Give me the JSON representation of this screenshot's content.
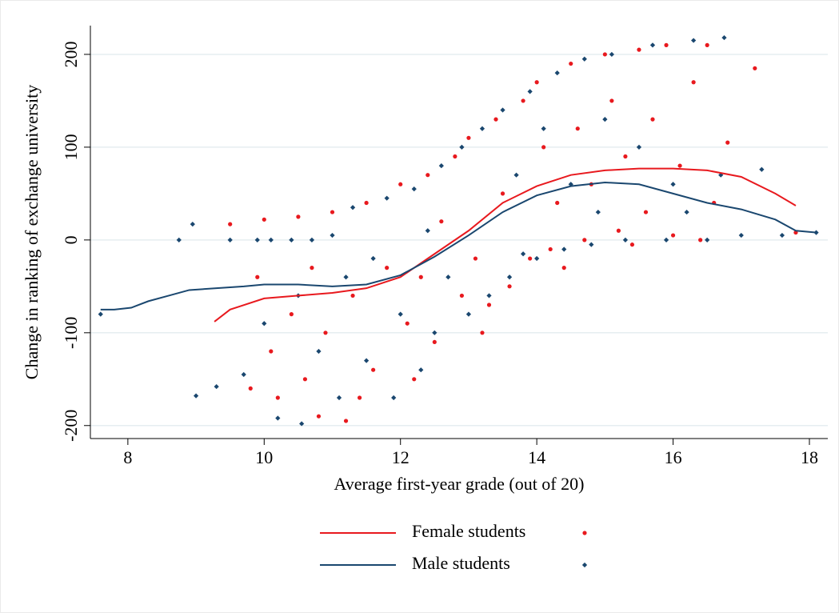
{
  "chart_data": {
    "type": "scatter",
    "xlabel": "Average first-year grade (out of 20)",
    "ylabel": "Change in ranking of exchange university",
    "xlim": [
      7.45,
      18.27
    ],
    "ylim": [
      -214,
      231
    ],
    "xticks": [
      8,
      10,
      12,
      14,
      16,
      18
    ],
    "yticks": [
      -200,
      -100,
      0,
      100,
      200
    ],
    "grid": true,
    "legend": "bottom",
    "series": [
      {
        "name": "Female students",
        "color": "#e8191e",
        "marker": "circle",
        "line": {
          "x": [
            9.27,
            9.5,
            10,
            10.5,
            11,
            11.5,
            12,
            12.5,
            13,
            13.5,
            14,
            14.5,
            15,
            15.5,
            16,
            16.5,
            17,
            17.5,
            17.8
          ],
          "values": [
            -88,
            -75,
            -63,
            -60,
            -57,
            -52,
            -40,
            -15,
            10,
            40,
            58,
            70,
            75,
            77,
            77,
            75,
            68,
            50,
            37
          ]
        },
        "points": {
          "x": [
            9.5,
            9.8,
            10,
            10.1,
            10.2,
            10.4,
            10.5,
            10.6,
            10.8,
            10.9,
            11,
            11.2,
            11.3,
            11.5,
            11.6,
            11.8,
            12,
            12.1,
            12.2,
            12.4,
            12.5,
            12.6,
            12.8,
            12.9,
            13,
            13.1,
            13.2,
            13.4,
            13.5,
            13.6,
            13.8,
            13.9,
            14,
            14.1,
            14.2,
            14.3,
            14.5,
            14.6,
            14.7,
            14.8,
            15,
            15.1,
            15.2,
            15.3,
            15.5,
            15.6,
            15.7,
            15.9,
            16,
            16.1,
            16.3,
            16.4,
            16.5,
            16.6,
            16.8,
            17.2,
            17.8,
            9.9,
            10.7,
            11.4,
            12.3,
            13.3,
            14.4,
            15.4
          ],
          "values": [
            17,
            -160,
            22,
            -120,
            -170,
            -80,
            25,
            -150,
            -190,
            -100,
            30,
            -195,
            -60,
            40,
            -140,
            -30,
            60,
            -90,
            -150,
            70,
            -110,
            20,
            90,
            -60,
            110,
            -20,
            -100,
            130,
            50,
            -50,
            150,
            -20,
            170,
            100,
            -10,
            40,
            190,
            120,
            0,
            60,
            200,
            150,
            10,
            90,
            205,
            30,
            130,
            210,
            5,
            80,
            170,
            0,
            210,
            40,
            105,
            185,
            8,
            -40,
            -30,
            -170,
            -40,
            -70,
            -30,
            -5
          ]
        }
      },
      {
        "name": "Male students",
        "color": "#1a476f",
        "marker": "x",
        "line": {
          "x": [
            7.6,
            7.8,
            8.05,
            8.3,
            8.6,
            8.9,
            9.3,
            9.7,
            10,
            10.5,
            11,
            11.5,
            12,
            12.5,
            13,
            13.5,
            14,
            14.5,
            15,
            15.5,
            16,
            16.5,
            17,
            17.5,
            17.8,
            18.1
          ],
          "values": [
            -75,
            -75,
            -73,
            -66,
            -60,
            -54,
            -52,
            -50,
            -48,
            -48,
            -50,
            -48,
            -38,
            -18,
            5,
            30,
            48,
            58,
            62,
            60,
            50,
            40,
            33,
            22,
            10,
            8
          ]
        },
        "points": {
          "x": [
            7.6,
            8.75,
            8.95,
            9.0,
            9.3,
            9.5,
            9.7,
            9.9,
            10.0,
            10.1,
            10.2,
            10.4,
            10.5,
            10.55,
            10.7,
            10.8,
            11,
            11.1,
            11.3,
            11.5,
            11.6,
            11.8,
            11.9,
            12.0,
            12.2,
            12.3,
            12.5,
            12.6,
            12.7,
            12.9,
            13,
            13.2,
            13.3,
            13.5,
            13.6,
            13.7,
            13.9,
            14,
            14.1,
            14.3,
            14.4,
            14.5,
            14.7,
            14.8,
            15,
            15.1,
            15.3,
            15.5,
            15.7,
            15.9,
            16.0,
            16.3,
            16.5,
            16.7,
            16.75,
            17.0,
            17.3,
            17.6,
            18.1,
            11.2,
            12.4,
            13.8,
            14.9,
            16.2
          ],
          "values": [
            -80,
            0,
            17,
            -168,
            -158,
            0,
            -145,
            0,
            -90,
            0,
            -192,
            0,
            -60,
            -198,
            0,
            -120,
            5,
            -170,
            35,
            -130,
            -20,
            45,
            -170,
            -80,
            55,
            -140,
            -100,
            80,
            -40,
            100,
            -80,
            120,
            -60,
            140,
            -40,
            70,
            160,
            -20,
            120,
            180,
            -10,
            60,
            195,
            -5,
            130,
            200,
            0,
            100,
            210,
            0,
            60,
            215,
            0,
            70,
            218,
            5,
            76,
            5,
            8,
            -40,
            10,
            -15,
            30,
            30
          ]
        }
      }
    ]
  }
}
